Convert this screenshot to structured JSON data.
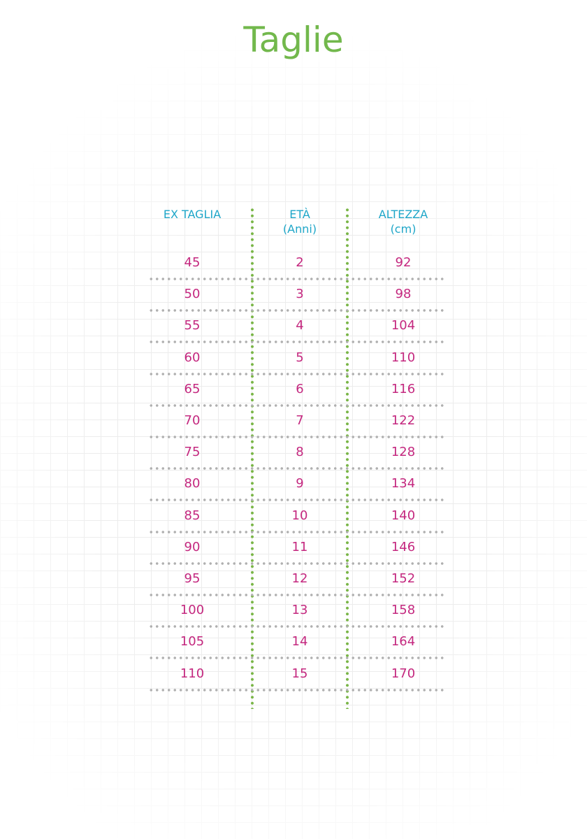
{
  "title": "Taglie",
  "colors": {
    "title": "#72b84c",
    "header": "#1ea6c8",
    "value": "#c4287f",
    "column_divider": "#7ab648",
    "row_divider": "#b0b0b0"
  },
  "table": {
    "headers": [
      {
        "line1": "EX TAGLIA",
        "line2": ""
      },
      {
        "line1": "ETÀ",
        "line2": "(Anni)"
      },
      {
        "line1": "ALTEZZA",
        "line2": "(cm)"
      }
    ],
    "rows": [
      [
        "45",
        "2",
        "92"
      ],
      [
        "50",
        "3",
        "98"
      ],
      [
        "55",
        "4",
        "104"
      ],
      [
        "60",
        "5",
        "110"
      ],
      [
        "65",
        "6",
        "116"
      ],
      [
        "70",
        "7",
        "122"
      ],
      [
        "75",
        "8",
        "128"
      ],
      [
        "80",
        "9",
        "134"
      ],
      [
        "85",
        "10",
        "140"
      ],
      [
        "90",
        "11",
        "146"
      ],
      [
        "95",
        "12",
        "152"
      ],
      [
        "100",
        "13",
        "158"
      ],
      [
        "105",
        "14",
        "164"
      ],
      [
        "110",
        "15",
        "170"
      ]
    ]
  }
}
